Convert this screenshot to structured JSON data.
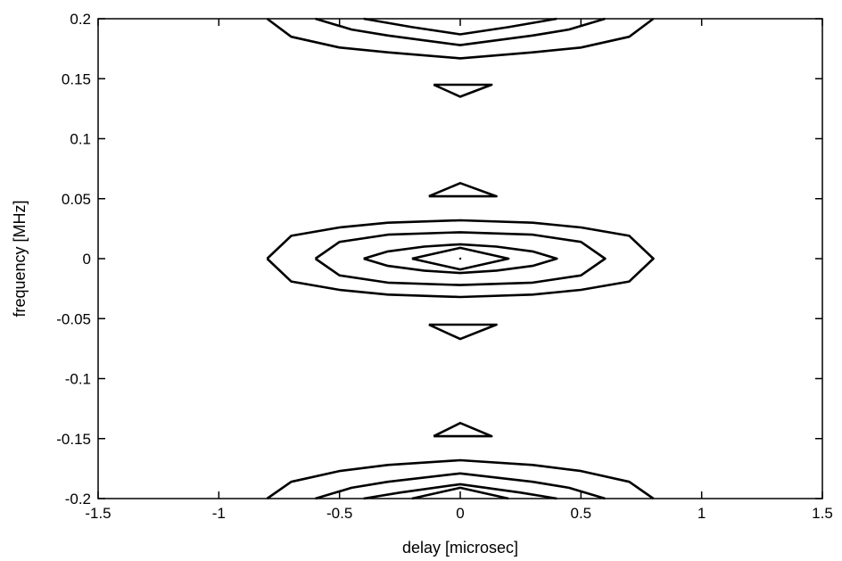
{
  "chart_data": {
    "type": "contour",
    "title": "",
    "xlabel": "delay [microsec]",
    "ylabel": "frequency [MHz]",
    "xlim": [
      -1.5,
      1.5
    ],
    "ylim": [
      -0.2,
      0.2
    ],
    "xticks": [
      -1.5,
      -1,
      -0.5,
      0,
      0.5,
      1,
      1.5
    ],
    "xtick_labels": [
      "-1.5",
      "-1",
      "-0.5",
      "0",
      "0.5",
      "1",
      "1.5"
    ],
    "yticks": [
      -0.2,
      -0.15,
      -0.1,
      -0.05,
      0,
      0.05,
      0.1,
      0.15,
      0.2
    ],
    "ytick_labels": [
      "-0.2",
      "-0.15",
      "-0.1",
      "-0.05",
      "0",
      "0.05",
      "0.1",
      "0.15",
      "0.2"
    ],
    "grid": false,
    "line_color": "#000000",
    "contours": [
      {
        "name": "central-level-1",
        "points": [
          [
            -0.8,
            0
          ],
          [
            -0.7,
            0.019
          ],
          [
            -0.5,
            0.026
          ],
          [
            -0.3,
            0.03
          ],
          [
            0,
            0.032
          ],
          [
            0.3,
            0.03
          ],
          [
            0.5,
            0.026
          ],
          [
            0.7,
            0.019
          ],
          [
            0.8,
            0
          ],
          [
            0.7,
            -0.019
          ],
          [
            0.5,
            -0.026
          ],
          [
            0.3,
            -0.03
          ],
          [
            0,
            -0.032
          ],
          [
            -0.3,
            -0.03
          ],
          [
            -0.5,
            -0.026
          ],
          [
            -0.7,
            -0.019
          ],
          [
            -0.8,
            0
          ]
        ]
      },
      {
        "name": "central-level-2",
        "points": [
          [
            -0.6,
            0
          ],
          [
            -0.5,
            0.014
          ],
          [
            -0.3,
            0.02
          ],
          [
            0,
            0.022
          ],
          [
            0.3,
            0.02
          ],
          [
            0.5,
            0.014
          ],
          [
            0.6,
            0
          ],
          [
            0.5,
            -0.014
          ],
          [
            0.3,
            -0.02
          ],
          [
            0,
            -0.022
          ],
          [
            -0.3,
            -0.02
          ],
          [
            -0.5,
            -0.014
          ],
          [
            -0.6,
            0
          ]
        ]
      },
      {
        "name": "central-level-3",
        "points": [
          [
            -0.4,
            0
          ],
          [
            -0.3,
            0.006
          ],
          [
            -0.15,
            0.01
          ],
          [
            0,
            0.012
          ],
          [
            0.15,
            0.01
          ],
          [
            0.3,
            0.006
          ],
          [
            0.4,
            0
          ],
          [
            0.3,
            -0.006
          ],
          [
            0.15,
            -0.01
          ],
          [
            0,
            -0.012
          ],
          [
            -0.15,
            -0.01
          ],
          [
            -0.3,
            -0.006
          ],
          [
            -0.4,
            0
          ]
        ]
      },
      {
        "name": "central-level-4",
        "points": [
          [
            -0.2,
            0
          ],
          [
            0,
            0.009
          ],
          [
            0.2,
            0
          ],
          [
            0,
            -0.009
          ],
          [
            -0.2,
            0
          ]
        ]
      },
      {
        "name": "side-lobe-plus-0.05",
        "points": [
          [
            -0.13,
            0.052
          ],
          [
            0,
            0.063
          ],
          [
            0.15,
            0.052
          ],
          [
            -0.13,
            0.052
          ]
        ]
      },
      {
        "name": "side-lobe-minus-0.05",
        "points": [
          [
            -0.13,
            -0.055
          ],
          [
            0.15,
            -0.055
          ],
          [
            0,
            -0.067
          ],
          [
            -0.13,
            -0.055
          ]
        ]
      },
      {
        "name": "side-lobe-plus-0.15",
        "points": [
          [
            -0.11,
            0.145
          ],
          [
            0.13,
            0.145
          ],
          [
            0,
            0.135
          ],
          [
            -0.11,
            0.145
          ]
        ]
      },
      {
        "name": "side-lobe-minus-0.15",
        "points": [
          [
            -0.11,
            -0.148
          ],
          [
            0,
            -0.137
          ],
          [
            0.13,
            -0.148
          ],
          [
            -0.11,
            -0.148
          ]
        ]
      },
      {
        "name": "top-level-1",
        "points": [
          [
            -0.8,
            0.2
          ],
          [
            -0.7,
            0.185
          ],
          [
            -0.5,
            0.176
          ],
          [
            -0.3,
            0.172
          ],
          [
            0,
            0.167
          ],
          [
            0.3,
            0.172
          ],
          [
            0.5,
            0.176
          ],
          [
            0.7,
            0.185
          ],
          [
            0.8,
            0.2
          ]
        ]
      },
      {
        "name": "top-level-2",
        "points": [
          [
            -0.6,
            0.2
          ],
          [
            -0.45,
            0.191
          ],
          [
            -0.3,
            0.186
          ],
          [
            0,
            0.178
          ],
          [
            0.3,
            0.186
          ],
          [
            0.45,
            0.191
          ],
          [
            0.6,
            0.2
          ]
        ]
      },
      {
        "name": "top-level-3",
        "points": [
          [
            -0.4,
            0.2
          ],
          [
            -0.2,
            0.193
          ],
          [
            0,
            0.187
          ],
          [
            0.2,
            0.193
          ],
          [
            0.4,
            0.2
          ]
        ]
      },
      {
        "name": "bottom-level-1",
        "points": [
          [
            -0.8,
            -0.2
          ],
          [
            -0.7,
            -0.186
          ],
          [
            -0.5,
            -0.177
          ],
          [
            -0.3,
            -0.172
          ],
          [
            0,
            -0.168
          ],
          [
            0.3,
            -0.172
          ],
          [
            0.5,
            -0.177
          ],
          [
            0.7,
            -0.186
          ],
          [
            0.8,
            -0.2
          ]
        ]
      },
      {
        "name": "bottom-level-2",
        "points": [
          [
            -0.6,
            -0.2
          ],
          [
            -0.45,
            -0.191
          ],
          [
            -0.3,
            -0.186
          ],
          [
            0,
            -0.179
          ],
          [
            0.3,
            -0.186
          ],
          [
            0.45,
            -0.191
          ],
          [
            0.6,
            -0.2
          ]
        ]
      },
      {
        "name": "bottom-level-3",
        "points": [
          [
            -0.4,
            -0.2
          ],
          [
            -0.25,
            -0.195
          ],
          [
            0,
            -0.188
          ],
          [
            0.25,
            -0.195
          ],
          [
            0.4,
            -0.2
          ]
        ]
      },
      {
        "name": "bottom-level-4",
        "points": [
          [
            -0.2,
            -0.2
          ],
          [
            0,
            -0.191
          ],
          [
            0.2,
            -0.2
          ]
        ]
      }
    ]
  }
}
